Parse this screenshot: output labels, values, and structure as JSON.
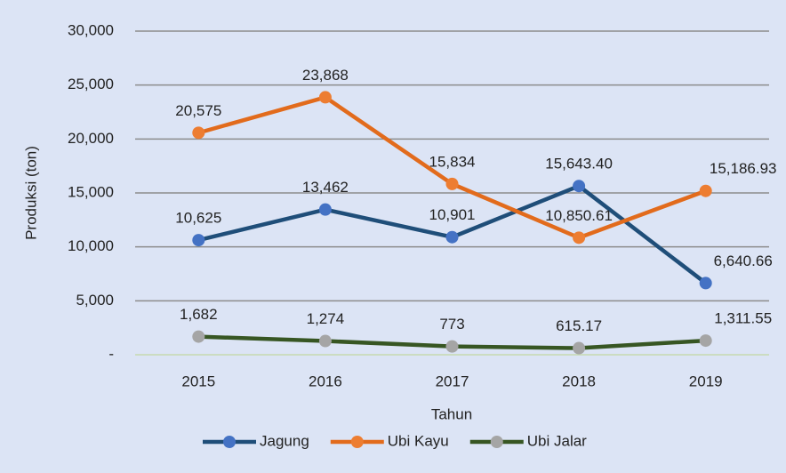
{
  "chart_data": {
    "type": "line",
    "y_label": "Produksi (ton)",
    "x_label": "Tahun",
    "categories": [
      "2015",
      "2016",
      "2017",
      "2018",
      "2019"
    ],
    "ylim": [
      0,
      30000
    ],
    "yticks": [
      {
        "value": 0,
        "label": "-"
      },
      {
        "value": 5000,
        "label": "5,000"
      },
      {
        "value": 10000,
        "label": "10,000"
      },
      {
        "value": 15000,
        "label": "15,000"
      },
      {
        "value": 20000,
        "label": "20,000"
      },
      {
        "value": 25000,
        "label": "25,000"
      },
      {
        "value": 30000,
        "label": "30,000"
      }
    ],
    "grid": true,
    "legend": "bottom",
    "series": [
      {
        "name": "Jagung",
        "color": "#1f4e79",
        "marker_color": "#4472c4",
        "values": [
          10625,
          13462,
          10901,
          15643.4,
          6640.66
        ],
        "value_labels": [
          "10,625",
          "13,462",
          "10,901",
          "15,643.40",
          "6,640.66"
        ]
      },
      {
        "name": "Ubi Kayu",
        "color": "#e26b1c",
        "marker_color": "#ed7d31",
        "values": [
          20575,
          23868,
          15834,
          10850.61,
          15186.93
        ],
        "value_labels": [
          "20,575",
          "23,868",
          "15,834",
          "10,850.61",
          "15,186.93"
        ]
      },
      {
        "name": "Ubi Jalar",
        "color": "#375623",
        "marker_color": "#a5a5a5",
        "values": [
          1682,
          1274,
          773,
          615.17,
          1311.55
        ],
        "value_labels": [
          "1,682",
          "1,274",
          "773",
          "615.17",
          "1,311.55"
        ]
      }
    ]
  }
}
